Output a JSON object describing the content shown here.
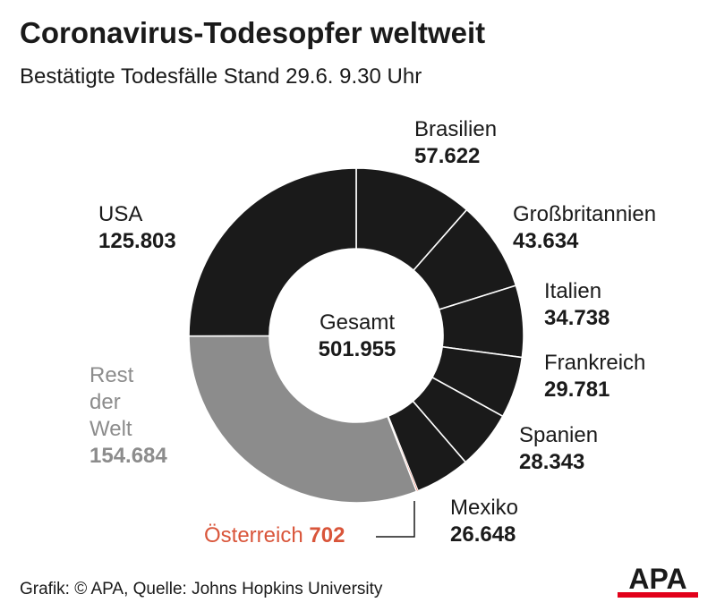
{
  "title": "Coronavirus-Todesopfer weltweit",
  "subtitle": "Bestätigte Todesfälle Stand 29.6. 9.30 Uhr",
  "center": {
    "label": "Gesamt",
    "value": "501.955"
  },
  "footer": "Grafik: © APA, Quelle: Johns Hopkins University",
  "logo_text": "APA",
  "colors": {
    "dark": "#1a1a1a",
    "rest": "#8c8c8c",
    "austria": "#d9553a",
    "separator": "#ffffff",
    "logo_red": "#e2001a"
  },
  "chart_data": {
    "type": "pie",
    "title": "Coronavirus-Todesopfer weltweit",
    "subtitle": "Bestätigte Todesfälle Stand 29.6. 9.30 Uhr",
    "total": 501955,
    "total_label": "Gesamt",
    "slices": [
      {
        "label": "USA",
        "value": 125803,
        "value_label": "125.803",
        "color": "#1a1a1a"
      },
      {
        "label": "Brasilien",
        "value": 57622,
        "value_label": "57.622",
        "color": "#1a1a1a"
      },
      {
        "label": "Großbritannien",
        "value": 43634,
        "value_label": "43.634",
        "color": "#1a1a1a"
      },
      {
        "label": "Italien",
        "value": 34738,
        "value_label": "34.738",
        "color": "#1a1a1a"
      },
      {
        "label": "Frankreich",
        "value": 29781,
        "value_label": "29.781",
        "color": "#1a1a1a"
      },
      {
        "label": "Spanien",
        "value": 28343,
        "value_label": "28.343",
        "color": "#1a1a1a"
      },
      {
        "label": "Mexiko",
        "value": 26648,
        "value_label": "26.648",
        "color": "#1a1a1a"
      },
      {
        "label": "Österreich",
        "value": 702,
        "value_label": "702",
        "color": "#d9553a"
      },
      {
        "label": "Rest der Welt",
        "value": 154684,
        "value_label": "154.684",
        "color": "#8c8c8c"
      }
    ]
  }
}
